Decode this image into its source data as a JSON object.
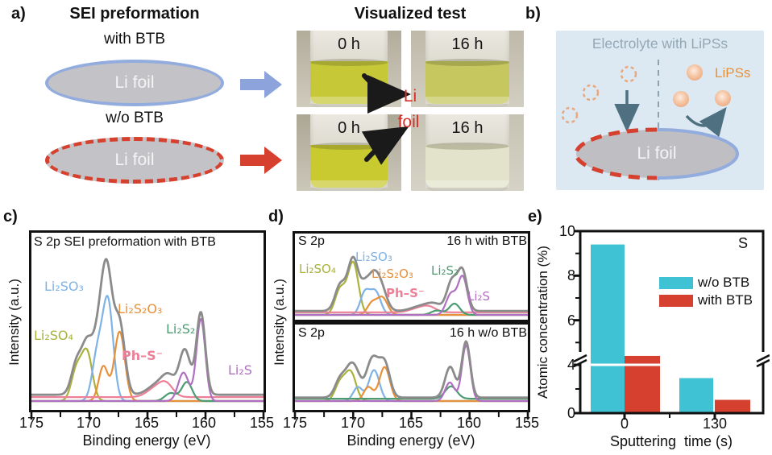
{
  "panel_a": {
    "label": "a)",
    "title": "SEI preformation",
    "with_btb": "with BTB",
    "wo_btb": "w/o BTB",
    "li_foil": "Li foil",
    "vis_title": "Visualized test",
    "t0": "0 h",
    "t16": "16 h",
    "center_li": "Li",
    "center_foil": "foil",
    "colors": {
      "blue_arrow": "#8CA4DB",
      "red_arrow": "#D6402E"
    }
  },
  "panel_b": {
    "label": "b)",
    "title": "Electrolyte with LiPSs",
    "lipss": "LiPSs",
    "li_foil": "Li foil",
    "colors": {
      "box": "#DCE9F2",
      "title_text": "#95A7B5",
      "lipss_text": "#E8913B",
      "dashed_circle": "#E8A87E",
      "arrow": "#4E7080",
      "red": "#D6402E",
      "blue": "#93ACDE"
    }
  },
  "panel_c": {
    "label": "c)"
  },
  "panel_d": {
    "label": "d)"
  },
  "panel_e": {
    "label": "e)"
  },
  "chart_data": [
    {
      "id": "spec-c",
      "type": "line",
      "title": "S 2p SEI preformation with BTB",
      "xlabel": "Binding energy (eV)",
      "ylabel": "Intensity (a.u.)",
      "x_range": [
        175,
        155
      ],
      "x_ticks": [
        175,
        170,
        165,
        160,
        155
      ],
      "envelope_color": "#8B8B8B",
      "components": [
        {
          "name": "Li₂SO₄",
          "color": "#A9B23B",
          "peaks": [
            [
              171.1,
              0.2,
              0.45
            ],
            [
              170.2,
              0.3,
              0.45
            ]
          ]
        },
        {
          "name": "Li₂SO₃",
          "color": "#7FB2E5",
          "peaks": [
            [
              169.3,
              0.3,
              0.45
            ],
            [
              168.4,
              0.62,
              0.45
            ]
          ]
        },
        {
          "name": "Li₂S₂O₃",
          "color": "#E8913B",
          "peaks": [
            [
              168.8,
              0.22,
              0.4
            ],
            [
              167.4,
              0.44,
              0.45
            ]
          ]
        },
        {
          "name": "Ph–S⁻",
          "color": "#ED7F97",
          "baseline": 0.025,
          "peaks": [
            [
              164.4,
              0.05,
              0.7
            ],
            [
              163.4,
              0.08,
              0.6
            ]
          ]
        },
        {
          "name": "Li₂S₂",
          "color": "#4D9B72",
          "peaks": [
            [
              163.0,
              0.05,
              0.5
            ],
            [
              161.6,
              0.12,
              0.45
            ]
          ]
        },
        {
          "name": "Li₂S",
          "color": "#B16FC2",
          "peaks": [
            [
              161.9,
              0.18,
              0.45
            ],
            [
              160.4,
              0.52,
              0.38
            ]
          ]
        }
      ]
    },
    {
      "id": "spec-d-top",
      "type": "line",
      "inner_left": "S 2p",
      "inner_right": "16 h with BTB",
      "x_range": [
        175,
        155
      ],
      "x_ticks": [
        175,
        170,
        165,
        160,
        155
      ],
      "envelope_color": "#8B8B8B",
      "components": [
        {
          "name": "Li₂SO₄",
          "color": "#A9B23B",
          "peaks": [
            [
              171.1,
              0.3,
              0.45
            ],
            [
              170.0,
              0.6,
              0.45
            ]
          ]
        },
        {
          "name": "Li₂SO₃",
          "color": "#7FB2E5",
          "peaks": [
            [
              169.0,
              0.25,
              0.4
            ],
            [
              168.1,
              0.27,
              0.45
            ]
          ]
        },
        {
          "name": "Li₂S₂O₃",
          "color": "#E8913B",
          "peaks": [
            [
              168.4,
              0.13,
              0.4
            ],
            [
              167.5,
              0.2,
              0.45
            ]
          ]
        },
        {
          "name": "Ph–S⁻",
          "color": "#ED7F97",
          "baseline": 0.03,
          "peaks": [
            [
              164.5,
              0.04,
              0.7
            ],
            [
              163.5,
              0.06,
              0.6
            ]
          ]
        },
        {
          "name": "Li₂S₂",
          "color": "#4D9B72",
          "peaks": [
            [
              162.8,
              0.05,
              0.5
            ],
            [
              161.3,
              0.13,
              0.45
            ]
          ]
        },
        {
          "name": "Li₂S",
          "color": "#B16FC2",
          "peaks": [
            [
              161.6,
              0.24,
              0.42
            ],
            [
              160.6,
              0.44,
              0.4
            ]
          ]
        }
      ]
    },
    {
      "id": "spec-d-bot",
      "type": "line",
      "inner_left": "S 2p",
      "inner_right": "16 h w/o BTB",
      "xlabel": "Binding energy (eV)",
      "ylabel": "Intensity (a.u.)",
      "x_range": [
        175,
        155
      ],
      "x_ticks": [
        175,
        170,
        165,
        160,
        155
      ],
      "envelope_color": "#8B8B8B",
      "components": [
        {
          "name": "Li₂SO₄",
          "color": "#A9B23B",
          "peaks": [
            [
              171.1,
              0.24,
              0.45
            ],
            [
              170.2,
              0.36,
              0.45
            ]
          ]
        },
        {
          "name": "Li₂SO₃",
          "color": "#7FB2E5",
          "peaks": [
            [
              169.6,
              0.18,
              0.4
            ],
            [
              168.2,
              0.4,
              0.45
            ]
          ]
        },
        {
          "name": "Li₂S₂O₃",
          "color": "#E8913B",
          "peaks": [
            [
              168.7,
              0.18,
              0.4
            ],
            [
              167.3,
              0.44,
              0.45
            ]
          ]
        },
        {
          "name": "Li₂S₂",
          "color": "#4D9B72",
          "baseline": 0.03,
          "peaks": [
            [
              161.6,
              0.16,
              0.5
            ]
          ]
        },
        {
          "name": "Li₂S",
          "color": "#B16FC2",
          "peaks": [
            [
              161.7,
              0.24,
              0.4
            ],
            [
              160.3,
              0.72,
              0.36
            ]
          ]
        }
      ]
    },
    {
      "id": "bars-svg",
      "type": "bar",
      "corner_label": "S",
      "xlabel": "Sputtering  time (s)",
      "ylabel": "Atomic concentration (%)",
      "categories": [
        "0",
        "130"
      ],
      "series": [
        {
          "name": "w/o BTB",
          "color": "#3FC2D4",
          "values": [
            9.4,
            2.9
          ]
        },
        {
          "name": "with BTB",
          "color": "#D6402E",
          "values": [
            4.4,
            1.1
          ]
        }
      ],
      "ylim": [
        0,
        10
      ],
      "axis_break": 4,
      "y_ticks_major": [
        0,
        4,
        6,
        8,
        10
      ],
      "y_ticks_minor": [
        2,
        5,
        7,
        9
      ],
      "y_tick_labels": [
        "10",
        "8",
        "6",
        "4",
        "0"
      ],
      "legend_position": "upper right",
      "grid": false
    }
  ]
}
